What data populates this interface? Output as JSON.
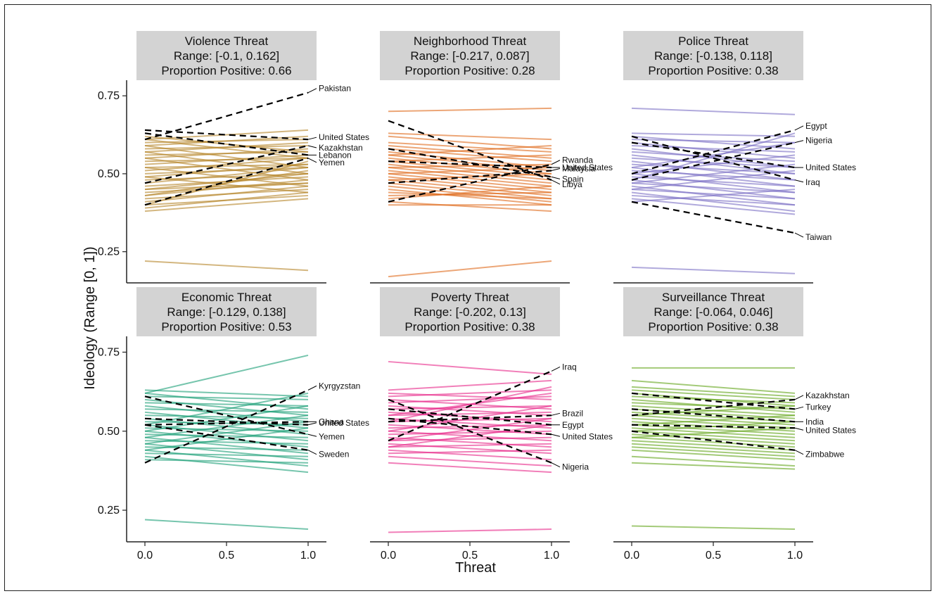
{
  "chart_data": {
    "type": "line",
    "xlabel": "Threat",
    "ylabel": "Ideology (Range [0, 1])",
    "x_ticks": [
      "0.0",
      "0.5",
      "1.0"
    ],
    "y_ticks": [
      "0.25",
      "0.50",
      "0.75"
    ],
    "xlim": [
      0,
      1
    ],
    "ylim": [
      0.15,
      0.8
    ],
    "grid": false,
    "panels": [
      {
        "title": "Violence Threat",
        "range_text": "Range: [-0.1, 0.162]",
        "proportion_text": "Proportion Positive: 0.66",
        "color": "#b5852a",
        "background_lines": [
          [
            0.22,
            0.19
          ],
          [
            0.38,
            0.42
          ],
          [
            0.39,
            0.44
          ],
          [
            0.4,
            0.43
          ],
          [
            0.41,
            0.46
          ],
          [
            0.42,
            0.45
          ],
          [
            0.43,
            0.48
          ],
          [
            0.44,
            0.47
          ],
          [
            0.45,
            0.5
          ],
          [
            0.46,
            0.49
          ],
          [
            0.47,
            0.52
          ],
          [
            0.48,
            0.5
          ],
          [
            0.49,
            0.53
          ],
          [
            0.5,
            0.52
          ],
          [
            0.51,
            0.55
          ],
          [
            0.52,
            0.53
          ],
          [
            0.53,
            0.56
          ],
          [
            0.54,
            0.55
          ],
          [
            0.55,
            0.58
          ],
          [
            0.56,
            0.57
          ],
          [
            0.57,
            0.6
          ],
          [
            0.58,
            0.59
          ],
          [
            0.59,
            0.62
          ],
          [
            0.6,
            0.61
          ],
          [
            0.61,
            0.64
          ],
          [
            0.62,
            0.57
          ],
          [
            0.61,
            0.55
          ],
          [
            0.59,
            0.52
          ],
          [
            0.57,
            0.5
          ],
          [
            0.55,
            0.48
          ],
          [
            0.52,
            0.46
          ],
          [
            0.49,
            0.44
          ],
          [
            0.45,
            0.47
          ],
          [
            0.43,
            0.51
          ],
          [
            0.4,
            0.54
          ]
        ],
        "highlighted": [
          {
            "country": "Pakistan",
            "y0": 0.61,
            "y1": 0.76
          },
          {
            "country": "United States",
            "y0": 0.64,
            "y1": 0.61
          },
          {
            "country": "Lebanon",
            "y0": 0.63,
            "y1": 0.56
          },
          {
            "country": "Kazakhstan",
            "y0": 0.47,
            "y1": 0.59
          },
          {
            "country": "Yemen",
            "y0": 0.4,
            "y1": 0.55
          }
        ]
      },
      {
        "title": "Neighborhood Threat",
        "range_text": "Range: [-0.217, 0.087]",
        "proportion_text": "Proportion Positive: 0.28",
        "color": "#e06a1c",
        "background_lines": [
          [
            0.7,
            0.71
          ],
          [
            0.17,
            0.22
          ],
          [
            0.63,
            0.61
          ],
          [
            0.62,
            0.58
          ],
          [
            0.6,
            0.57
          ],
          [
            0.59,
            0.55
          ],
          [
            0.58,
            0.54
          ],
          [
            0.57,
            0.52
          ],
          [
            0.56,
            0.51
          ],
          [
            0.55,
            0.5
          ],
          [
            0.54,
            0.49
          ],
          [
            0.53,
            0.48
          ],
          [
            0.52,
            0.47
          ],
          [
            0.51,
            0.46
          ],
          [
            0.5,
            0.45
          ],
          [
            0.49,
            0.44
          ],
          [
            0.48,
            0.43
          ],
          [
            0.47,
            0.42
          ],
          [
            0.46,
            0.41
          ],
          [
            0.45,
            0.4
          ],
          [
            0.44,
            0.42
          ],
          [
            0.43,
            0.44
          ],
          [
            0.42,
            0.46
          ],
          [
            0.41,
            0.38
          ],
          [
            0.4,
            0.4
          ],
          [
            0.52,
            0.53
          ],
          [
            0.54,
            0.56
          ],
          [
            0.5,
            0.52
          ],
          [
            0.48,
            0.5
          ],
          [
            0.56,
            0.59
          ]
        ],
        "highlighted": [
          {
            "country": "Rwanda",
            "y0": 0.41,
            "y1": 0.53
          },
          {
            "country": "Malaysia",
            "y0": 0.47,
            "y1": 0.51
          },
          {
            "country": "United States",
            "y0": 0.54,
            "y1": 0.52
          },
          {
            "country": "Spain",
            "y0": 0.58,
            "y1": 0.49
          },
          {
            "country": "Libya",
            "y0": 0.67,
            "y1": 0.48
          }
        ]
      },
      {
        "title": "Police Threat",
        "range_text": "Range: [-0.138, 0.118]",
        "proportion_text": "Proportion Positive: 0.38",
        "color": "#7b6fc4",
        "background_lines": [
          [
            0.71,
            0.69
          ],
          [
            0.2,
            0.18
          ],
          [
            0.63,
            0.62
          ],
          [
            0.62,
            0.58
          ],
          [
            0.61,
            0.6
          ],
          [
            0.6,
            0.55
          ],
          [
            0.59,
            0.57
          ],
          [
            0.58,
            0.52
          ],
          [
            0.57,
            0.54
          ],
          [
            0.56,
            0.5
          ],
          [
            0.55,
            0.52
          ],
          [
            0.54,
            0.48
          ],
          [
            0.53,
            0.5
          ],
          [
            0.52,
            0.46
          ],
          [
            0.51,
            0.48
          ],
          [
            0.5,
            0.44
          ],
          [
            0.49,
            0.46
          ],
          [
            0.48,
            0.42
          ],
          [
            0.47,
            0.44
          ],
          [
            0.46,
            0.4
          ],
          [
            0.45,
            0.42
          ],
          [
            0.44,
            0.38
          ],
          [
            0.43,
            0.4
          ],
          [
            0.42,
            0.37
          ],
          [
            0.41,
            0.45
          ],
          [
            0.5,
            0.56
          ],
          [
            0.47,
            0.53
          ],
          [
            0.45,
            0.51
          ],
          [
            0.52,
            0.6
          ],
          [
            0.48,
            0.63
          ]
        ],
        "highlighted": [
          {
            "country": "Egypt",
            "y0": 0.5,
            "y1": 0.64
          },
          {
            "country": "Nigeria",
            "y0": 0.48,
            "y1": 0.6
          },
          {
            "country": "United States",
            "y0": 0.6,
            "y1": 0.52
          },
          {
            "country": "Iraq",
            "y0": 0.62,
            "y1": 0.48
          },
          {
            "country": "Taiwan",
            "y0": 0.41,
            "y1": 0.31
          }
        ]
      },
      {
        "title": "Economic Threat",
        "range_text": "Range: [-0.129, 0.138]",
        "proportion_text": "Proportion Positive: 0.53",
        "color": "#1b9e77",
        "background_lines": [
          [
            0.22,
            0.19
          ],
          [
            0.62,
            0.74
          ],
          [
            0.63,
            0.61
          ],
          [
            0.62,
            0.57
          ],
          [
            0.61,
            0.6
          ],
          [
            0.6,
            0.55
          ],
          [
            0.59,
            0.58
          ],
          [
            0.58,
            0.53
          ],
          [
            0.57,
            0.56
          ],
          [
            0.56,
            0.51
          ],
          [
            0.55,
            0.54
          ],
          [
            0.54,
            0.49
          ],
          [
            0.53,
            0.52
          ],
          [
            0.52,
            0.47
          ],
          [
            0.51,
            0.5
          ],
          [
            0.5,
            0.45
          ],
          [
            0.49,
            0.48
          ],
          [
            0.48,
            0.43
          ],
          [
            0.47,
            0.46
          ],
          [
            0.46,
            0.41
          ],
          [
            0.45,
            0.44
          ],
          [
            0.44,
            0.39
          ],
          [
            0.43,
            0.42
          ],
          [
            0.42,
            0.37
          ],
          [
            0.41,
            0.4
          ],
          [
            0.48,
            0.55
          ],
          [
            0.46,
            0.53
          ],
          [
            0.5,
            0.58
          ],
          [
            0.52,
            0.62
          ],
          [
            0.44,
            0.51
          ]
        ],
        "highlighted": [
          {
            "country": "Kyrgyzstan",
            "y0": 0.4,
            "y1": 0.63
          },
          {
            "country": "United States",
            "y0": 0.54,
            "y1": 0.52
          },
          {
            "country": "Ghana",
            "y0": 0.52,
            "y1": 0.53
          },
          {
            "country": "Yemen",
            "y0": 0.61,
            "y1": 0.49
          },
          {
            "country": "Sweden",
            "y0": 0.52,
            "y1": 0.44
          }
        ]
      },
      {
        "title": "Poverty Threat",
        "range_text": "Range: [-0.202, 0.13]",
        "proportion_text": "Proportion Positive: 0.38",
        "color": "#e7298a",
        "background_lines": [
          [
            0.72,
            0.68
          ],
          [
            0.18,
            0.19
          ],
          [
            0.63,
            0.66
          ],
          [
            0.62,
            0.6
          ],
          [
            0.61,
            0.63
          ],
          [
            0.6,
            0.57
          ],
          [
            0.59,
            0.61
          ],
          [
            0.58,
            0.55
          ],
          [
            0.57,
            0.58
          ],
          [
            0.56,
            0.53
          ],
          [
            0.55,
            0.56
          ],
          [
            0.54,
            0.51
          ],
          [
            0.53,
            0.54
          ],
          [
            0.52,
            0.49
          ],
          [
            0.51,
            0.52
          ],
          [
            0.5,
            0.47
          ],
          [
            0.49,
            0.5
          ],
          [
            0.48,
            0.45
          ],
          [
            0.47,
            0.48
          ],
          [
            0.46,
            0.43
          ],
          [
            0.45,
            0.46
          ],
          [
            0.44,
            0.41
          ],
          [
            0.43,
            0.44
          ],
          [
            0.42,
            0.39
          ],
          [
            0.4,
            0.37
          ],
          [
            0.55,
            0.62
          ],
          [
            0.5,
            0.58
          ],
          [
            0.47,
            0.54
          ],
          [
            0.53,
            0.64
          ],
          [
            0.45,
            0.52
          ]
        ],
        "highlighted": [
          {
            "country": "Iraq",
            "y0": 0.47,
            "y1": 0.69
          },
          {
            "country": "Brazil",
            "y0": 0.53,
            "y1": 0.55
          },
          {
            "country": "Egypt",
            "y0": 0.57,
            "y1": 0.52
          },
          {
            "country": "United States",
            "y0": 0.54,
            "y1": 0.49
          },
          {
            "country": "Nigeria",
            "y0": 0.6,
            "y1": 0.4
          }
        ]
      },
      {
        "title": "Surveillance Threat",
        "range_text": "Range: [-0.064, 0.046]",
        "proportion_text": "Proportion Positive: 0.38",
        "color": "#66a61e",
        "background_lines": [
          [
            0.7,
            0.7
          ],
          [
            0.2,
            0.19
          ],
          [
            0.66,
            0.62
          ],
          [
            0.64,
            0.61
          ],
          [
            0.63,
            0.6
          ],
          [
            0.62,
            0.58
          ],
          [
            0.61,
            0.59
          ],
          [
            0.6,
            0.56
          ],
          [
            0.59,
            0.57
          ],
          [
            0.58,
            0.55
          ],
          [
            0.57,
            0.54
          ],
          [
            0.56,
            0.53
          ],
          [
            0.55,
            0.52
          ],
          [
            0.54,
            0.51
          ],
          [
            0.53,
            0.5
          ],
          [
            0.52,
            0.49
          ],
          [
            0.51,
            0.48
          ],
          [
            0.5,
            0.47
          ],
          [
            0.49,
            0.46
          ],
          [
            0.48,
            0.45
          ],
          [
            0.47,
            0.44
          ],
          [
            0.46,
            0.43
          ],
          [
            0.45,
            0.42
          ],
          [
            0.44,
            0.41
          ],
          [
            0.42,
            0.39
          ],
          [
            0.4,
            0.38
          ],
          [
            0.52,
            0.55
          ],
          [
            0.5,
            0.53
          ],
          [
            0.48,
            0.51
          ],
          [
            0.55,
            0.58
          ]
        ],
        "highlighted": [
          {
            "country": "Kazakhstan",
            "y0": 0.55,
            "y1": 0.6
          },
          {
            "country": "Turkey",
            "y0": 0.62,
            "y1": 0.57
          },
          {
            "country": "India",
            "y0": 0.57,
            "y1": 0.53
          },
          {
            "country": "United States",
            "y0": 0.52,
            "y1": 0.51
          },
          {
            "country": "Zimbabwe",
            "y0": 0.5,
            "y1": 0.44
          }
        ]
      }
    ]
  }
}
